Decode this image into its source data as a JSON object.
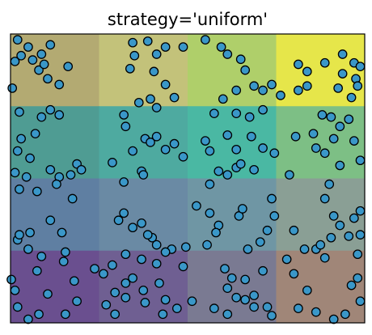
{
  "chart_data": {
    "type": "scatter",
    "title": "strategy='uniform'",
    "xlabel": "",
    "ylabel": "",
    "xlim": [
      0,
      4
    ],
    "ylim": [
      0,
      4
    ],
    "grid": false,
    "axes_ticks": false,
    "background": {
      "type": "heatmap",
      "description_of_encoding": "4x4 uniform bins, cell color from binned feature values",
      "rows_top_to_bottom": [
        [
          "#b3aa72",
          "#c3c27a",
          "#afcf6a",
          "#e6e64a"
        ],
        [
          "#4f9c93",
          "#4eaaa0",
          "#4ab8a3",
          "#7dbf85"
        ],
        [
          "#5f7fa2",
          "#6a8aa4",
          "#6f96a4",
          "#8a9f95"
        ],
        [
          "#6a4f8f",
          "#6f5f92",
          "#7a7a92",
          "#a08678"
        ]
      ]
    },
    "marker_color": "#3a97c8",
    "marker_edge_color": "#000000",
    "points": [
      [
        0.08,
        3.92
      ],
      [
        0.2,
        3.82
      ],
      [
        0.12,
        3.7
      ],
      [
        0.25,
        3.64
      ],
      [
        0.35,
        3.72
      ],
      [
        0.45,
        3.85
      ],
      [
        0.32,
        3.5
      ],
      [
        0.42,
        3.38
      ],
      [
        0.55,
        3.3
      ],
      [
        0.38,
        3.58
      ],
      [
        0.65,
        3.55
      ],
      [
        0.02,
        3.25
      ],
      [
        0.05,
        3.62
      ],
      [
        1.38,
        3.88
      ],
      [
        1.55,
        3.9
      ],
      [
        1.65,
        3.72
      ],
      [
        1.4,
        3.7
      ],
      [
        1.75,
        3.82
      ],
      [
        1.95,
        3.82
      ],
      [
        1.35,
        3.52
      ],
      [
        1.62,
        3.48
      ],
      [
        1.75,
        3.3
      ],
      [
        1.85,
        3.12
      ],
      [
        1.58,
        3.1
      ],
      [
        1.45,
        3.05
      ],
      [
        1.65,
        2.98
      ],
      [
        1.28,
        2.88
      ],
      [
        2.2,
        3.92
      ],
      [
        2.38,
        3.82
      ],
      [
        2.45,
        3.72
      ],
      [
        2.6,
        3.65
      ],
      [
        2.65,
        3.5
      ],
      [
        2.75,
        3.28
      ],
      [
        2.85,
        3.22
      ],
      [
        2.95,
        3.3
      ],
      [
        3.05,
        3.15
      ],
      [
        2.55,
        3.22
      ],
      [
        2.4,
        3.1
      ],
      [
        2.3,
        2.9
      ],
      [
        2.55,
        2.9
      ],
      [
        2.85,
        2.95
      ],
      [
        3.25,
        3.58
      ],
      [
        3.35,
        3.48
      ],
      [
        3.35,
        3.28
      ],
      [
        3.25,
        3.22
      ],
      [
        3.55,
        3.6
      ],
      [
        3.75,
        3.72
      ],
      [
        3.88,
        3.6
      ],
      [
        3.9,
        3.38
      ],
      [
        3.7,
        3.25
      ],
      [
        3.85,
        3.12
      ],
      [
        3.75,
        3.45
      ],
      [
        3.95,
        3.55
      ],
      [
        3.92,
        3.28
      ],
      [
        0.1,
        2.92
      ],
      [
        0.35,
        2.85
      ],
      [
        0.45,
        2.95
      ],
      [
        0.55,
        2.88
      ],
      [
        0.28,
        2.62
      ],
      [
        0.12,
        2.55
      ],
      [
        0.08,
        2.38
      ],
      [
        0.22,
        2.28
      ],
      [
        0.05,
        2.08
      ],
      [
        0.18,
        2.02
      ],
      [
        0.45,
        2.12
      ],
      [
        0.55,
        2.02
      ],
      [
        0.52,
        1.92
      ],
      [
        0.75,
        2.2
      ],
      [
        0.8,
        2.12
      ],
      [
        0.68,
        2.05
      ],
      [
        1.3,
        2.72
      ],
      [
        1.52,
        2.55
      ],
      [
        1.58,
        2.5
      ],
      [
        1.65,
        2.58
      ],
      [
        1.38,
        2.38
      ],
      [
        1.48,
        2.1
      ],
      [
        1.5,
        2.05
      ],
      [
        1.28,
        1.95
      ],
      [
        1.15,
        2.22
      ],
      [
        1.75,
        2.4
      ],
      [
        1.95,
        2.3
      ],
      [
        1.85,
        2.48
      ],
      [
        2.2,
        2.52
      ],
      [
        2.25,
        2.38
      ],
      [
        2.45,
        2.6
      ],
      [
        2.55,
        2.4
      ],
      [
        2.7,
        2.85
      ],
      [
        2.72,
        2.58
      ],
      [
        2.85,
        2.42
      ],
      [
        2.98,
        2.35
      ],
      [
        2.75,
        2.12
      ],
      [
        2.55,
        2.15
      ],
      [
        2.45,
        2.05
      ],
      [
        2.6,
        2.2
      ],
      [
        2.35,
        2.1
      ],
      [
        2.25,
        1.92
      ],
      [
        3.22,
        2.58
      ],
      [
        3.42,
        2.62
      ],
      [
        3.65,
        2.55
      ],
      [
        3.72,
        2.72
      ],
      [
        3.62,
        2.85
      ],
      [
        3.88,
        2.52
      ],
      [
        3.45,
        2.42
      ],
      [
        3.72,
        2.18
      ],
      [
        3.82,
        2.82
      ],
      [
        3.52,
        2.88
      ],
      [
        3.95,
        2.25
      ],
      [
        3.15,
        2.05
      ],
      [
        3.55,
        2.35
      ],
      [
        0.1,
        1.85
      ],
      [
        0.3,
        1.82
      ],
      [
        0.7,
        1.72
      ],
      [
        0.45,
        1.42
      ],
      [
        0.22,
        1.25
      ],
      [
        0.08,
        1.15
      ],
      [
        0.35,
        0.92
      ],
      [
        0.62,
        0.98
      ],
      [
        0.2,
        1.02
      ],
      [
        0.58,
        1.25
      ],
      [
        0.1,
        1.22
      ],
      [
        1.28,
        1.52
      ],
      [
        1.22,
        1.42
      ],
      [
        1.48,
        1.38
      ],
      [
        1.6,
        1.18
      ],
      [
        1.65,
        1.08
      ],
      [
        1.82,
        1.02
      ],
      [
        1.75,
        0.98
      ],
      [
        1.55,
        1.22
      ],
      [
        1.38,
        1.32
      ],
      [
        1.98,
        1.05
      ],
      [
        2.1,
        1.62
      ],
      [
        2.25,
        1.52
      ],
      [
        2.35,
        1.35
      ],
      [
        2.22,
        1.08
      ],
      [
        2.58,
        1.48
      ],
      [
        2.62,
        1.58
      ],
      [
        2.68,
        1.02
      ],
      [
        2.82,
        1.12
      ],
      [
        2.9,
        1.28
      ],
      [
        2.95,
        1.72
      ],
      [
        2.98,
        1.48
      ],
      [
        2.32,
        1.25
      ],
      [
        3.45,
        1.02
      ],
      [
        3.5,
        1.08
      ],
      [
        3.62,
        1.18
      ],
      [
        3.72,
        1.35
      ],
      [
        3.88,
        1.45
      ],
      [
        3.95,
        1.55
      ],
      [
        3.65,
        1.48
      ],
      [
        3.82,
        1.2
      ],
      [
        3.55,
        1.72
      ],
      [
        3.95,
        1.22
      ],
      [
        3.2,
        1.28
      ],
      [
        3.6,
        1.92
      ],
      [
        3.92,
        0.95
      ],
      [
        3.32,
        1.02
      ],
      [
        0.0,
        0.6
      ],
      [
        0.05,
        0.45
      ],
      [
        0.3,
        0.72
      ],
      [
        0.72,
        0.58
      ],
      [
        0.75,
        0.3
      ],
      [
        0.42,
        0.4
      ],
      [
        0.32,
        0.12
      ],
      [
        0.08,
        0.22
      ],
      [
        0.62,
        0.12
      ],
      [
        0.2,
        0.05
      ],
      [
        0.95,
        0.75
      ],
      [
        0.6,
        0.85
      ],
      [
        1.15,
        0.8
      ],
      [
        1.05,
        0.68
      ],
      [
        1.3,
        0.55
      ],
      [
        1.38,
        0.62
      ],
      [
        1.5,
        0.45
      ],
      [
        1.52,
        0.28
      ],
      [
        1.3,
        0.35
      ],
      [
        1.18,
        0.42
      ],
      [
        1.08,
        0.25
      ],
      [
        1.18,
        0.12
      ],
      [
        1.68,
        0.55
      ],
      [
        1.75,
        0.32
      ],
      [
        1.72,
        0.12
      ],
      [
        1.88,
        0.2
      ],
      [
        1.95,
        0.78
      ],
      [
        1.65,
        0.82
      ],
      [
        1.3,
        0.95
      ],
      [
        1.48,
        0.88
      ],
      [
        2.42,
        0.75
      ],
      [
        2.5,
        0.62
      ],
      [
        2.45,
        0.48
      ],
      [
        2.55,
        0.35
      ],
      [
        2.65,
        0.6
      ],
      [
        2.85,
        0.72
      ],
      [
        2.9,
        0.22
      ],
      [
        2.95,
        0.1
      ],
      [
        2.75,
        0.22
      ],
      [
        2.65,
        0.32
      ],
      [
        2.45,
        0.12
      ],
      [
        2.3,
        0.2
      ],
      [
        2.75,
        0.38
      ],
      [
        2.05,
        0.3
      ],
      [
        3.12,
        0.88
      ],
      [
        3.2,
        0.68
      ],
      [
        3.25,
        0.2
      ],
      [
        3.45,
        0.15
      ],
      [
        3.65,
        0.05
      ],
      [
        3.78,
        0.12
      ],
      [
        3.85,
        0.52
      ],
      [
        3.95,
        0.3
      ],
      [
        3.55,
        0.9
      ],
      [
        3.92,
        0.62
      ],
      [
        3.35,
        0.45
      ]
    ]
  }
}
